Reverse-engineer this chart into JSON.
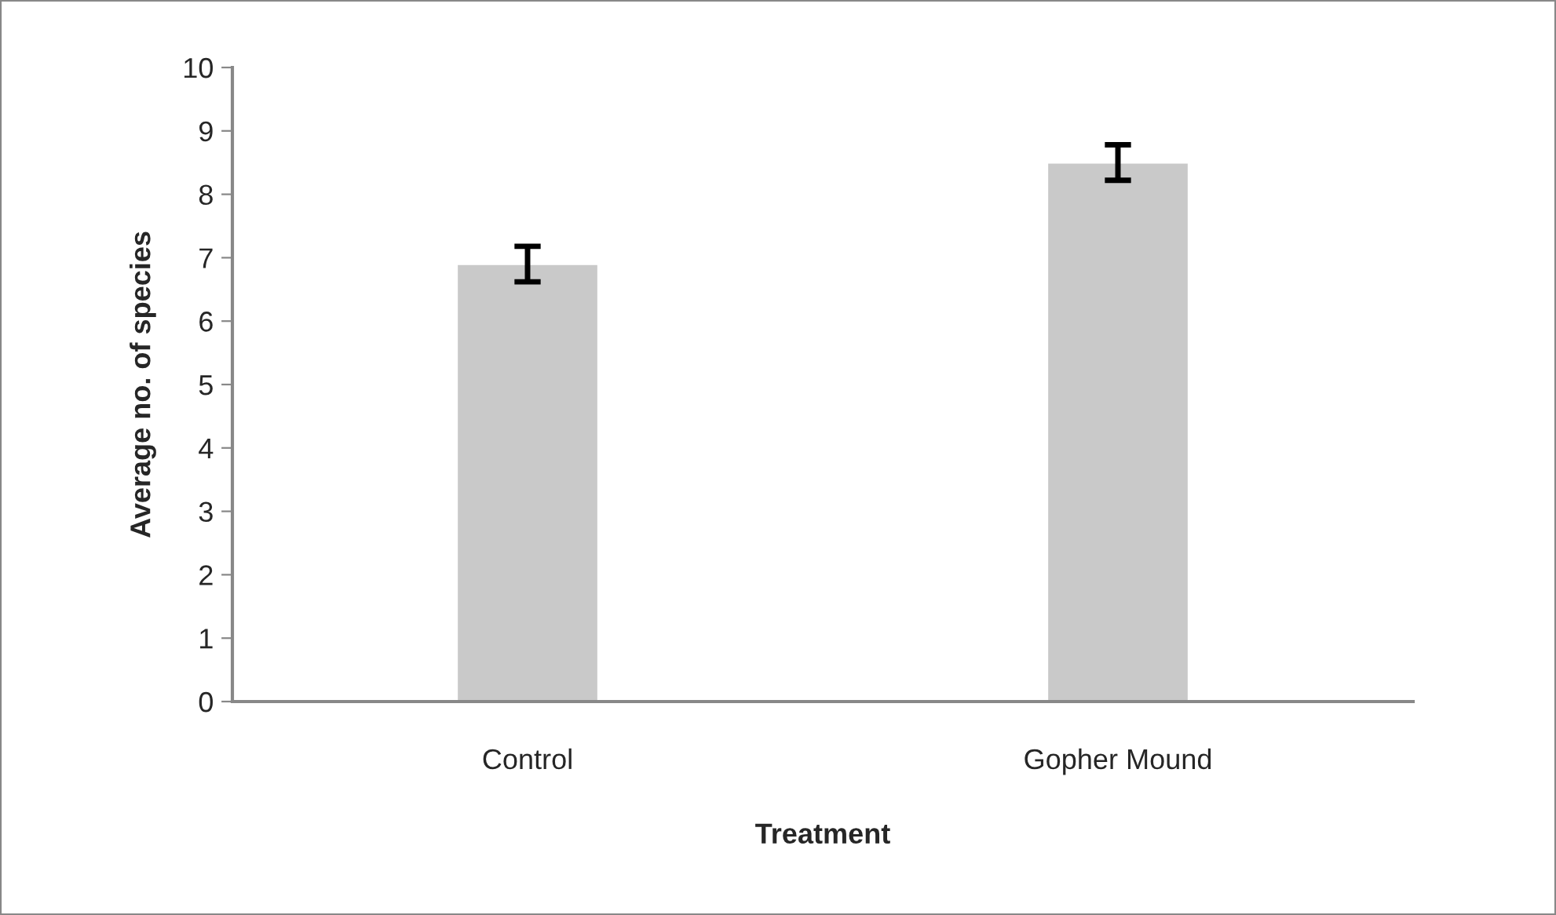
{
  "chart_data": {
    "type": "bar",
    "xlabel": "Treatment",
    "ylabel": "Average no. of species",
    "categories": [
      "Control",
      "Gopher Mound"
    ],
    "series": [
      {
        "color": "#c9c9c9",
        "values": [
          6.9,
          8.5
        ],
        "errors": [
          0.28,
          0.28
        ]
      }
    ],
    "ylim": [
      0,
      10
    ],
    "yticks": [
      0,
      1,
      2,
      3,
      4,
      5,
      6,
      7,
      8,
      9,
      10
    ],
    "grid": false,
    "legend": false
  }
}
